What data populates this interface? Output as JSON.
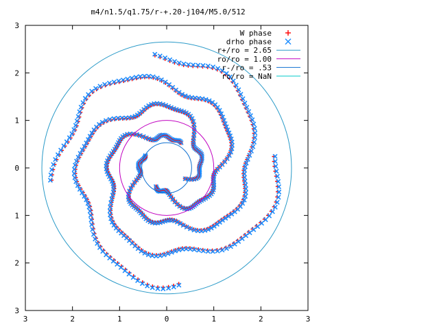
{
  "chart_data": {
    "type": "scatter",
    "title": "m4/n1.5/q1.75/r-+.20-j104/M5.0/512",
    "xlim": [
      -3,
      3
    ],
    "ylim": [
      -3,
      3
    ],
    "x_tick_labels": [
      "3",
      "2",
      "1",
      "0",
      "1",
      "2",
      "3"
    ],
    "y_tick_labels": [
      "3",
      "2",
      "1",
      "0",
      "1",
      "2",
      "3"
    ],
    "grid": false,
    "legend_position": "top-right",
    "colors": {
      "w_phase": "#ff0000",
      "drho_phase": "#1a8cff",
      "r_plus": "#2a9ac8",
      "ro": "#c000c0",
      "r_minus": "#1070d0",
      "rc": "#00c8c8",
      "axis": "#000000"
    },
    "series": [
      {
        "name": "W phase",
        "marker": "plus"
      },
      {
        "name": "drho phase",
        "marker": "cross"
      }
    ],
    "spiral_arms": {
      "count": 4,
      "inner_radius": 0.45,
      "outer_radius": 2.45,
      "start_angles_deg": [
        330,
        60,
        150,
        240
      ],
      "winding_turns": 0.85
    },
    "circles": [
      {
        "name": "r+/ro = 2.65",
        "radius": 2.65,
        "color_key": "r_plus"
      },
      {
        "name": "ro/ro = 1.00",
        "radius": 1.0,
        "color_key": "ro"
      },
      {
        "name": "r-/ro = .53",
        "radius": 0.53,
        "color_key": "r_minus"
      },
      {
        "name": "rc/ro = NaN",
        "radius": null,
        "color_key": "rc"
      }
    ]
  }
}
